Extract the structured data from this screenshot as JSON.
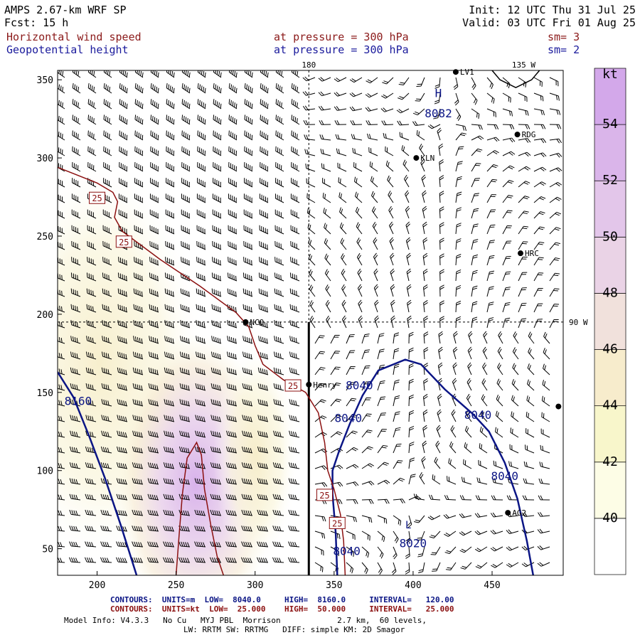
{
  "header": {
    "model": "AMPS 2.67-km WRF SP",
    "forecast": "Fcst:   15 h",
    "init": "Init: 12 UTC Thu 31 Jul 25",
    "valid": "Valid: 03 UTC Fri 01 Aug 25",
    "field1": "Horizontal wind speed",
    "field1_level": "at pressure =  300 hPa",
    "field1_smooth": "sm= 3",
    "field2": "Geopotential height",
    "field2_level": "at pressure =  300 hPa",
    "field2_smooth": "sm= 2"
  },
  "colors": {
    "header_red": "#8b1a1a",
    "header_blue": "#1a1a9c",
    "height_contour": "#0b1585",
    "speed_contour": "#8b1010"
  },
  "chart_data": {
    "type": "contour",
    "xlim": [
      175,
      495
    ],
    "ylim": [
      33,
      356
    ],
    "xticks": [
      "200",
      "250",
      "300",
      "350",
      "400",
      "450"
    ],
    "yticks": [
      "50",
      "100",
      "150",
      "200",
      "250",
      "300",
      "350"
    ],
    "lon_labels": [
      "180",
      "135 W",
      "90 W"
    ],
    "shaded_field": "Horizontal wind speed (kt)",
    "colorbar": {
      "unit": "kt",
      "labels": [
        "40",
        "42",
        "44",
        "46",
        "48",
        "50",
        "52",
        "54"
      ],
      "colors": [
        "#ffffff",
        "#fdfde6",
        "#f8f6cb",
        "#f7eccc",
        "#f1e1dc",
        "#ead3e6",
        "#e3c6ea",
        "#dab5ea",
        "#d3a8ea"
      ]
    },
    "height_contours": {
      "units": "m",
      "low": "8040.0",
      "high": "8160.0",
      "interval": "120.00",
      "labels": [
        {
          "text": "8082",
          "x": 416,
          "y": 326
        },
        {
          "text": "8160",
          "x": 188,
          "y": 142
        },
        {
          "text": "8040",
          "x": 366,
          "y": 152
        },
        {
          "text": "8040",
          "x": 359,
          "y": 131
        },
        {
          "text": "8040",
          "x": 441,
          "y": 133
        },
        {
          "text": "8040",
          "x": 458,
          "y": 94
        },
        {
          "text": "8040",
          "x": 358,
          "y": 46
        },
        {
          "text": "8020",
          "x": 400,
          "y": 51
        }
      ],
      "extremum": {
        "text": "H",
        "x": 416,
        "y": 339
      },
      "low_marker": {
        "text": "L",
        "x": 397,
        "y": 63
      }
    },
    "speed_contours": {
      "units": "kt",
      "low": "25.000",
      "high": "50.000",
      "interval": "25.000",
      "labels": [
        {
          "text": "25",
          "x": 200,
          "y": 274
        },
        {
          "text": "25",
          "x": 217,
          "y": 246
        },
        {
          "text": "25",
          "x": 324,
          "y": 154
        },
        {
          "text": "25",
          "x": 344,
          "y": 84
        },
        {
          "text": "25",
          "x": 352,
          "y": 66
        }
      ]
    },
    "stations": [
      {
        "name": "NCO",
        "x": 294,
        "y": 195
      },
      {
        "name": "Henry",
        "x": 334,
        "y": 155
      },
      {
        "name": "KLN",
        "x": 402,
        "y": 300
      },
      {
        "name": "RDG",
        "x": 466,
        "y": 315
      },
      {
        "name": "HRC",
        "x": 468,
        "y": 239
      },
      {
        "name": "AG2",
        "x": 460,
        "y": 73
      },
      {
        "name": "LV1",
        "x": 427,
        "y": 355
      },
      {
        "name": "",
        "x": 492,
        "y": 141
      }
    ]
  },
  "footer": {
    "height_contour_line": "CONTOURS:  UNITS=m  LOW=  8040.0     HIGH=  8160.0     INTERVAL=   120.00",
    "speed_contour_line": "CONTOURS:  UNITS=kt  LOW=  25.000    HIGH=  50.000     INTERVAL=   25.000",
    "model_info": "Model Info: V4.3.3   No Cu   MYJ PBL  Morrison            2.7 km,  60 levels,",
    "physics": "LW: RRTM SW: RRTMG   DIFF: simple KM: 2D Smagor"
  }
}
